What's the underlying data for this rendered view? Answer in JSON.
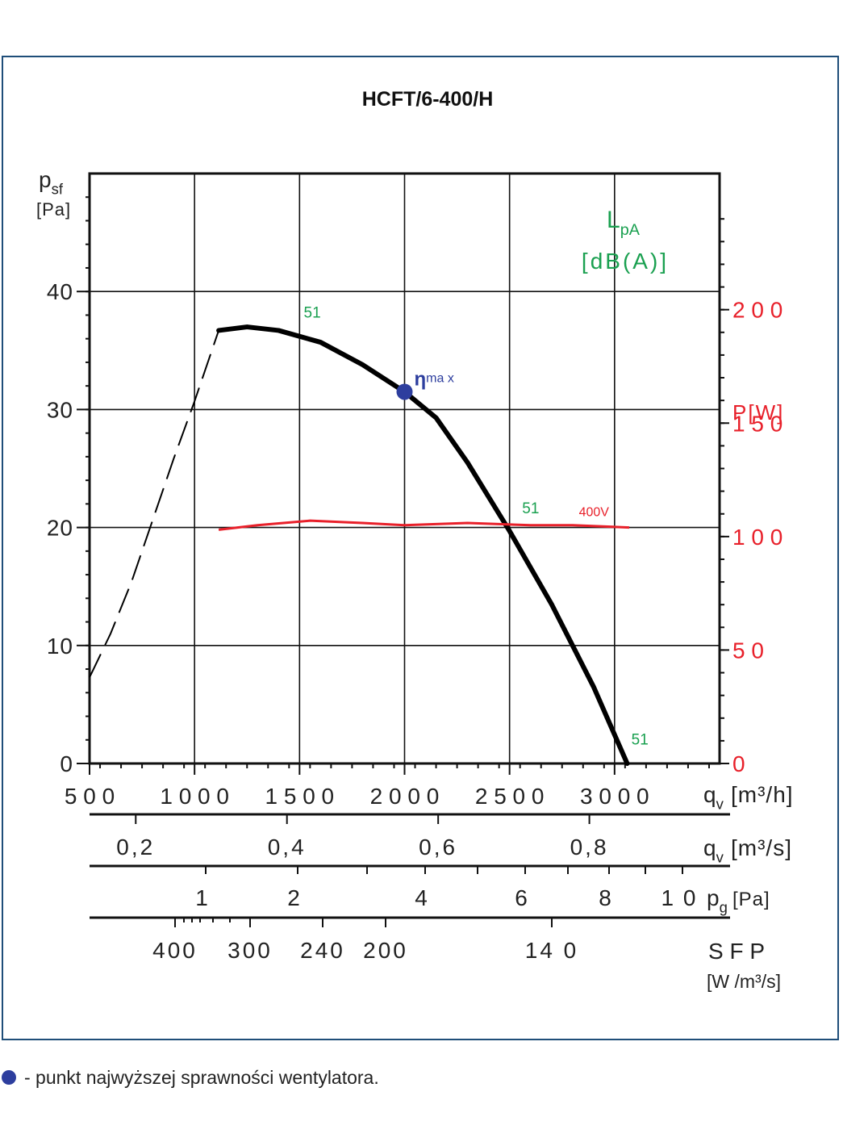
{
  "title": "HCFT/6-400/H",
  "footnote": "- punkt najwyższej sprawności wentylatora.",
  "colors": {
    "frame": "#1f4e79",
    "curve": "#000000",
    "power": "#e8202a",
    "noise": "#1aa050",
    "eta": "#2d3e9e"
  },
  "chart_data": {
    "type": "line",
    "title": "HCFT/6-400/H",
    "x_axis": {
      "label": "q",
      "sub": "v",
      "unit": "[m³/h]",
      "range": [
        500,
        3500
      ],
      "ticks": [
        "500",
        "1000",
        "1500",
        "2000",
        "2500",
        "3000"
      ]
    },
    "y_axis": {
      "label": "p",
      "sub": "sf",
      "unit": "[Pa]",
      "range": [
        0,
        50
      ],
      "ticks": [
        "0",
        "10",
        "20",
        "30",
        "40"
      ]
    },
    "y2_axis": {
      "label": "P[W]",
      "range": [
        0,
        260
      ],
      "ticks": [
        "0",
        "50",
        "10 0",
        "15 0",
        "200"
      ]
    },
    "noise_label": {
      "l": "L",
      "sub": "pA",
      "unit": "[dB(A)]"
    },
    "series": [
      {
        "role": "pressure-curve",
        "points": [
          [
            1115,
            36.7
          ],
          [
            1250,
            37.0
          ],
          [
            1400,
            36.7
          ],
          [
            1600,
            35.7
          ],
          [
            1800,
            33.8
          ],
          [
            2000,
            31.5
          ],
          [
            2150,
            29.3
          ],
          [
            2300,
            25.5
          ],
          [
            2500,
            19.7
          ],
          [
            2700,
            13.5
          ],
          [
            2900,
            6.5
          ],
          [
            3060,
            0
          ]
        ]
      },
      {
        "role": "unstable-region",
        "points": [
          [
            500,
            7.3
          ],
          [
            600,
            11.0
          ],
          [
            700,
            15.4
          ],
          [
            800,
            20.6
          ],
          [
            900,
            25.8
          ],
          [
            1000,
            30.7
          ],
          [
            1115,
            36.7
          ]
        ]
      },
      {
        "name": "400V",
        "axis": "y2",
        "points": [
          [
            1115,
            103
          ],
          [
            1300,
            105
          ],
          [
            1550,
            107
          ],
          [
            1800,
            106
          ],
          [
            2000,
            105
          ],
          [
            2300,
            106
          ],
          [
            2600,
            105
          ],
          [
            2800,
            105
          ],
          [
            3070,
            104
          ]
        ]
      }
    ],
    "eta_max": {
      "x": 2000,
      "y": 31.5,
      "label": "η",
      "label_sub": "ma x"
    },
    "noise_points": [
      {
        "x": 1520,
        "y": 37.8,
        "label": "51"
      },
      {
        "x": 2560,
        "y": 21.2,
        "label": "51"
      },
      {
        "x": 3080,
        "y": 1.6,
        "label": "51"
      }
    ],
    "power_label": {
      "x": 2830,
      "y": 109,
      "label": "400V"
    },
    "scale_qv_m3s": {
      "label": "q",
      "sub": "v",
      "unit": "[m³/s]",
      "labels": [
        {
          "value": 0.2,
          "text": "0,2"
        },
        {
          "value": 0.4,
          "text": "0,4"
        },
        {
          "value": 0.6,
          "text": "0,6"
        },
        {
          "value": 0.8,
          "text": "0,8"
        }
      ]
    },
    "scale_pg": {
      "label": "p",
      "sub": "g",
      "unit": "[Pa]",
      "labels": [
        {
          "value": 1,
          "text": "1"
        },
        {
          "value": 2,
          "text": "2"
        },
        {
          "value": 4,
          "text": "4"
        },
        {
          "value": 6,
          "text": "6"
        },
        {
          "value": 8,
          "text": "8"
        },
        {
          "value": 10,
          "text": "1 0"
        }
      ]
    },
    "scale_sfp": {
      "label": "S F P",
      "unit": "[W /m³/s]",
      "labels": [
        {
          "value": 400,
          "text": "400"
        },
        {
          "value": 300,
          "text": "300"
        },
        {
          "value": 240,
          "text": "240"
        },
        {
          "value": 200,
          "text": "200"
        },
        {
          "value": 140,
          "text": "14 0"
        }
      ]
    }
  }
}
